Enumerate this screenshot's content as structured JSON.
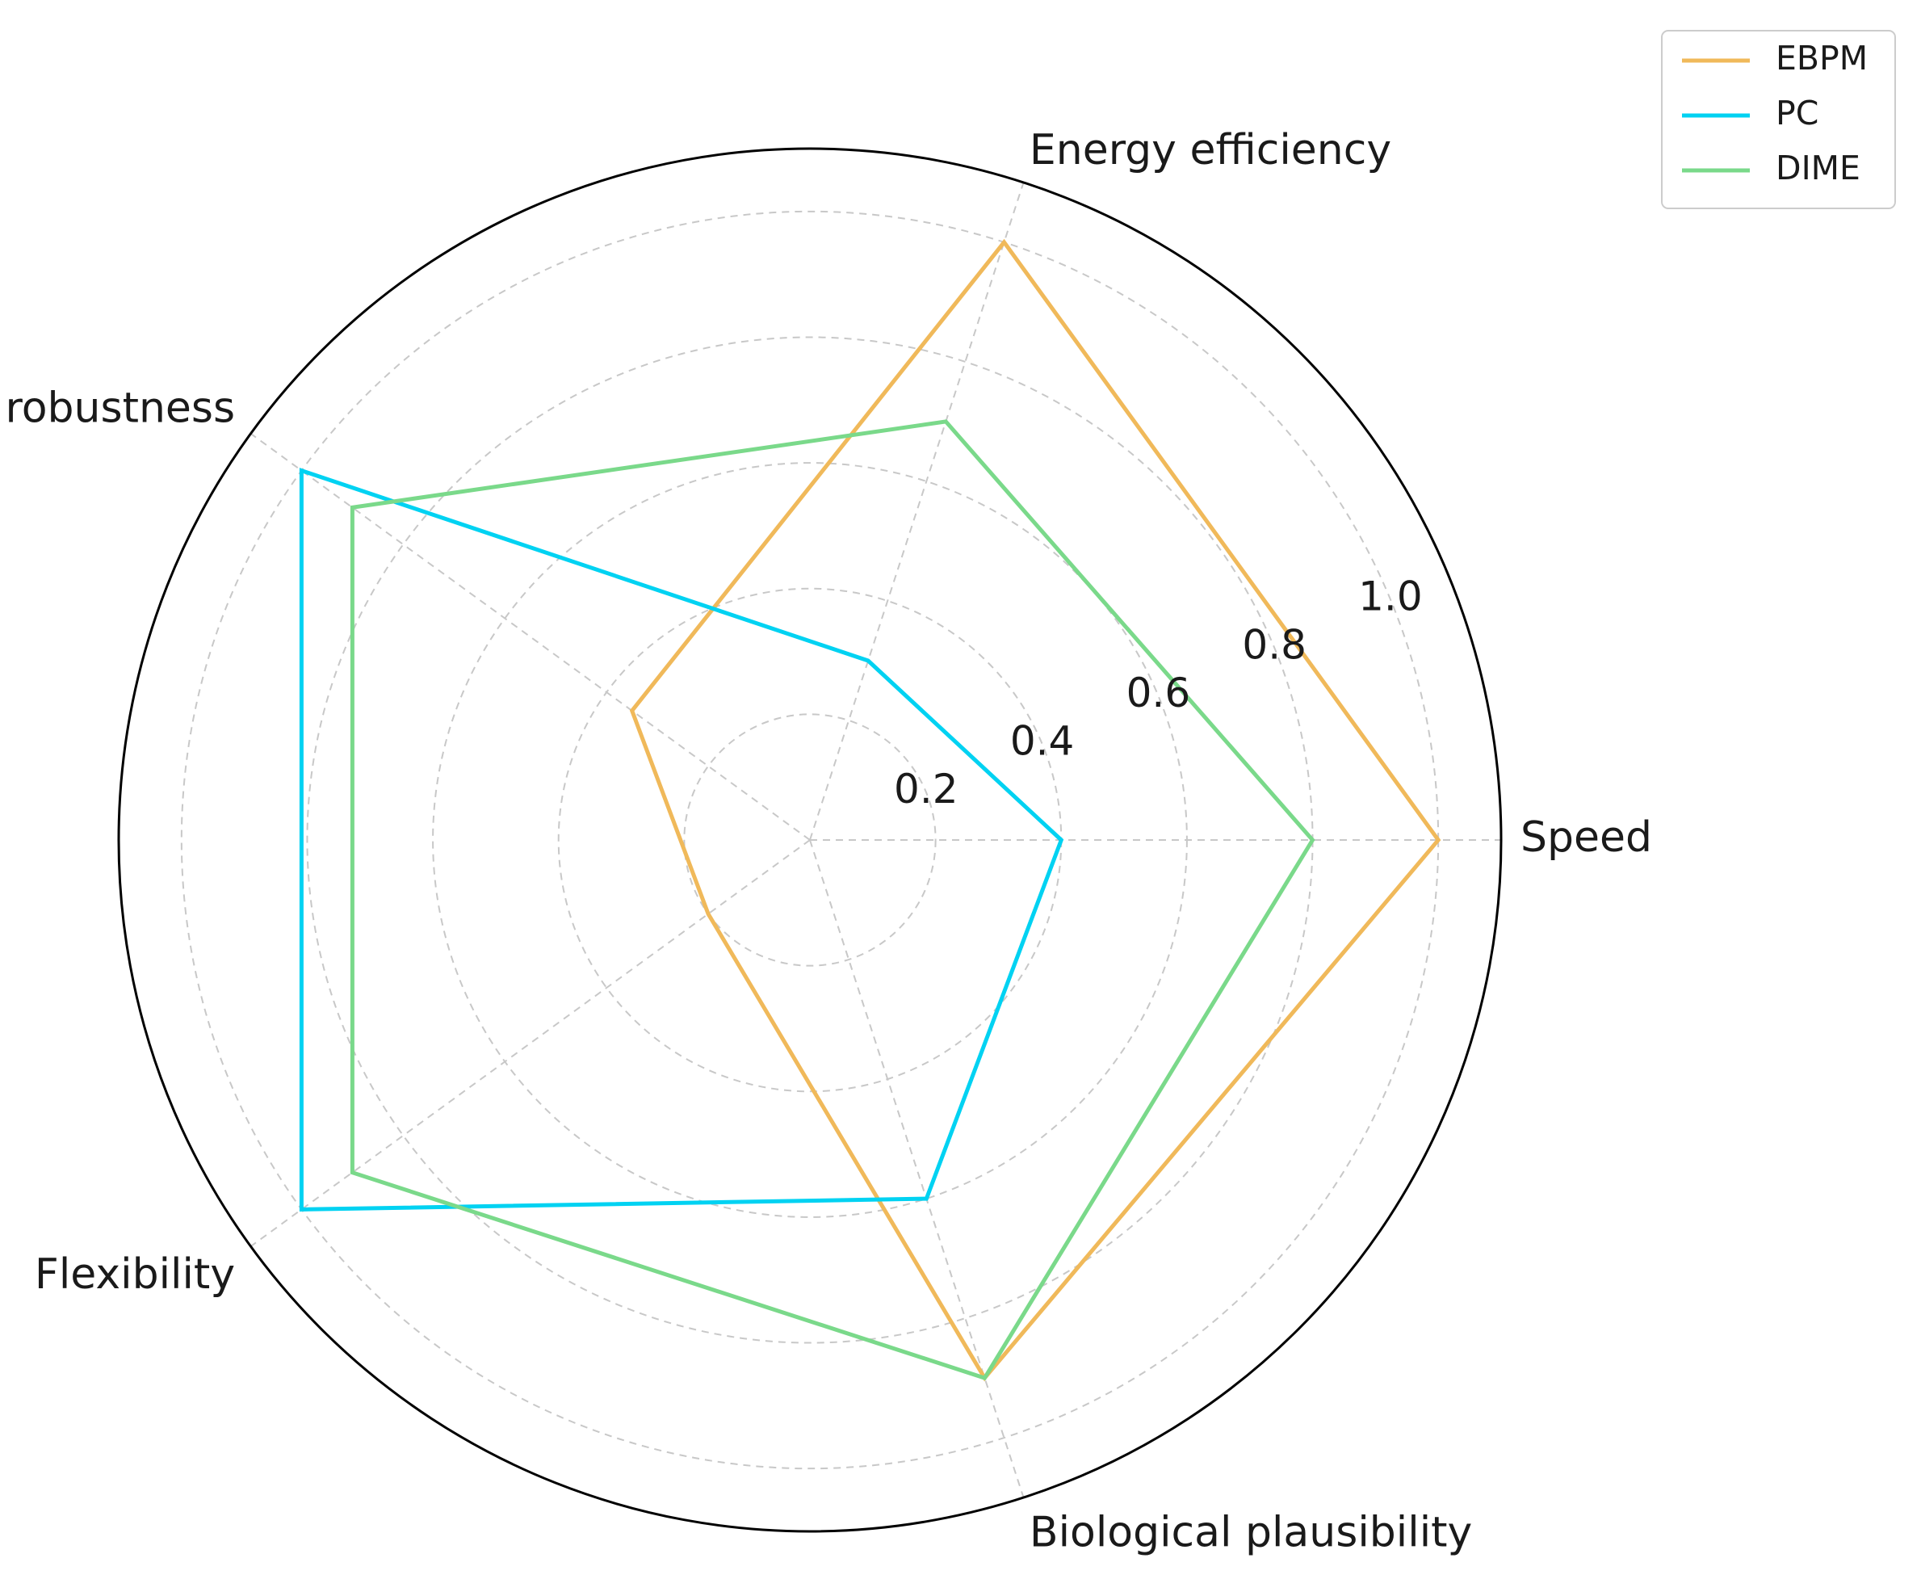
{
  "chart_data": {
    "type": "radar",
    "axes": [
      "Speed",
      "Energy efficiency",
      "Noise robustness",
      "Flexibility",
      "Biological plausibility"
    ],
    "rlim": [
      0,
      1.1
    ],
    "rticks": [
      "0.2",
      "0.4",
      "0.6",
      "0.8",
      "1.0"
    ],
    "rtick_values": [
      0.2,
      0.4,
      0.6,
      0.8,
      1.0
    ],
    "grid": true,
    "legend_position": "top-right",
    "series": [
      {
        "name": "EBPM",
        "color": "#f0b95a",
        "values": [
          1.0,
          1.0,
          0.35,
          0.2,
          0.9
        ]
      },
      {
        "name": "PC",
        "color": "#00d2f2",
        "values": [
          0.4,
          0.3,
          1.0,
          1.0,
          0.6
        ]
      },
      {
        "name": "DIME",
        "color": "#7ad98a",
        "values": [
          0.8,
          0.7,
          0.9,
          0.9,
          0.9
        ]
      }
    ]
  }
}
